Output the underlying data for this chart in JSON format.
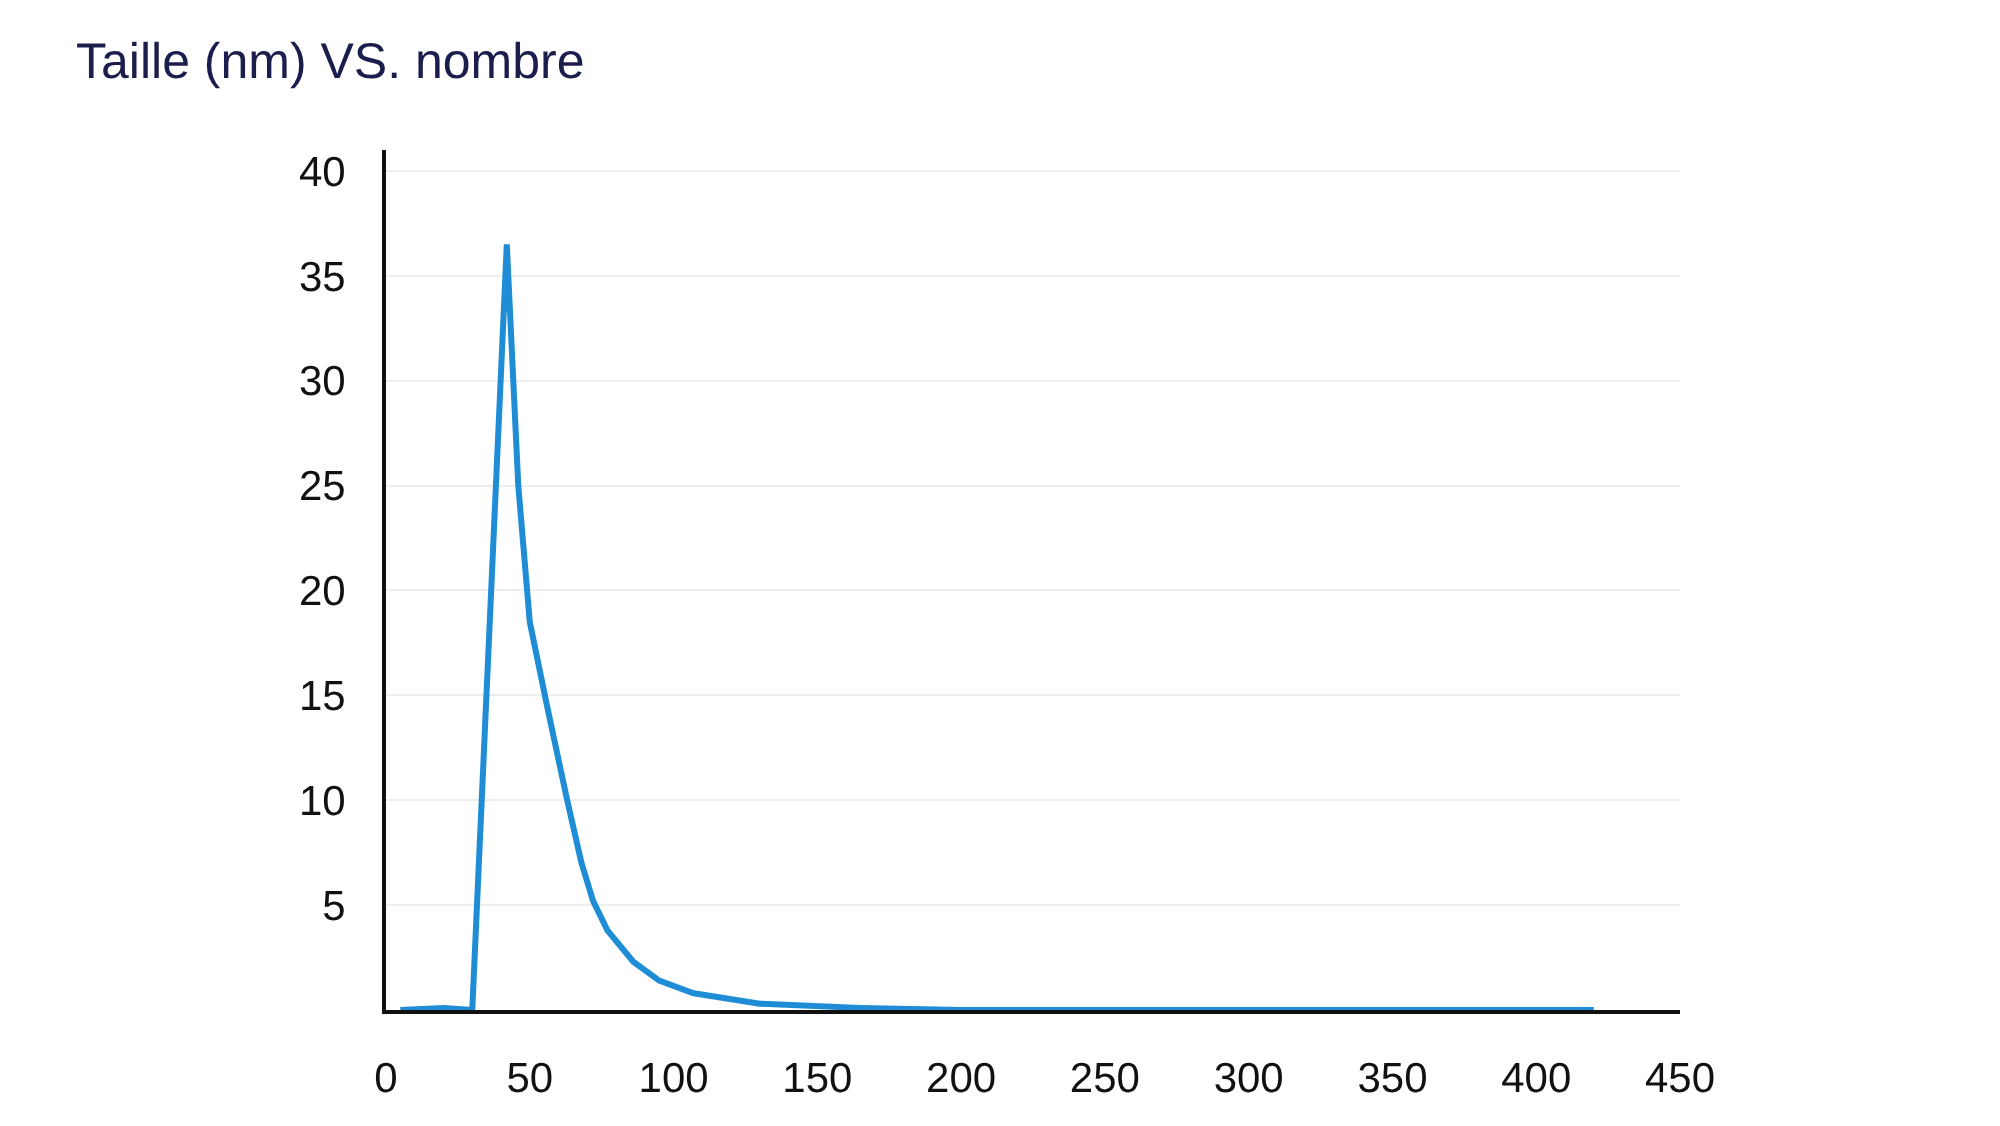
{
  "chart_data": {
    "type": "line",
    "title": "Taille (nm) VS. nombre",
    "x": [
      5,
      20,
      30,
      42,
      46,
      50,
      56,
      63,
      68,
      72,
      77,
      86,
      95,
      107,
      130,
      165,
      200,
      420
    ],
    "series": [
      {
        "color": "#1f8dd6",
        "values": [
          0,
          0.1,
          0,
          36.5,
          25,
          18.5,
          14.5,
          10,
          7,
          5.2,
          3.8,
          2.3,
          1.4,
          0.8,
          0.3,
          0.1,
          0,
          0
        ]
      }
    ],
    "xlim": [
      0,
      450
    ],
    "xticks": [
      0,
      50,
      100,
      150,
      200,
      250,
      300,
      350,
      400,
      450
    ],
    "ylim": [
      0,
      41
    ],
    "yticks": [
      5,
      10,
      15,
      20,
      25,
      30,
      35,
      40
    ],
    "grid": "y",
    "marker": "none",
    "line_style": "solid"
  }
}
